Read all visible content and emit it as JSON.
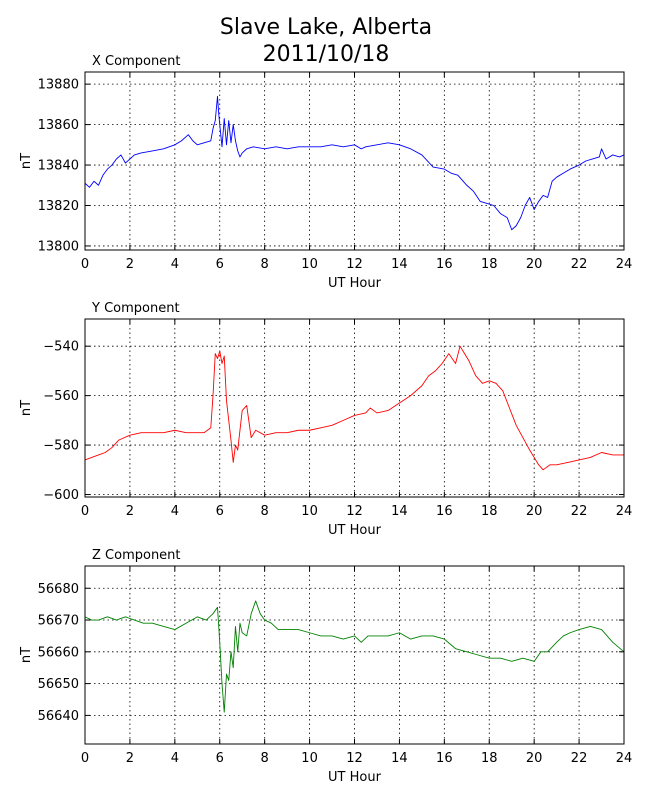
{
  "figure": {
    "title_line1": "Slave Lake, Alberta",
    "title_line2": "2011/10/18"
  },
  "chart_data": [
    {
      "type": "line",
      "title": "X Component",
      "xlabel": "UT Hour",
      "ylabel": "nT",
      "xlim": [
        0,
        24
      ],
      "ylim": [
        13798,
        13886
      ],
      "xticks": [
        0,
        2,
        4,
        6,
        8,
        10,
        12,
        14,
        16,
        18,
        20,
        22,
        24
      ],
      "yticks": [
        13800,
        13820,
        13840,
        13860,
        13880
      ],
      "grid": true,
      "color": "#0000ff",
      "series": [
        {
          "x": [
            0,
            0.2,
            0.4,
            0.6,
            0.8,
            1.0,
            1.2,
            1.4,
            1.6,
            1.8,
            2.0,
            2.2,
            2.5,
            3.0,
            3.5,
            4.0,
            4.3,
            4.6,
            4.8,
            5.0,
            5.3,
            5.6,
            5.7,
            5.8,
            5.9,
            5.95,
            6.0,
            6.1,
            6.2,
            6.3,
            6.4,
            6.5,
            6.6,
            6.7,
            6.8,
            6.9,
            7.0,
            7.2,
            7.5,
            8.0,
            8.5,
            9.0,
            9.5,
            10.0,
            10.5,
            11.0,
            11.5,
            12.0,
            12.3,
            12.5,
            13.0,
            13.5,
            14.0,
            14.5,
            15.0,
            15.5,
            16.0,
            16.3,
            16.6,
            17.0,
            17.3,
            17.6,
            17.9,
            18.2,
            18.5,
            18.8,
            19.0,
            19.2,
            19.4,
            19.6,
            19.8,
            20.0,
            20.2,
            20.4,
            20.6,
            20.8,
            21.0,
            21.3,
            21.6,
            22.0,
            22.3,
            22.6,
            22.9,
            23.0,
            23.2,
            23.5,
            23.8,
            24.0
          ],
          "y": [
            13831,
            13829,
            13832,
            13830,
            13835,
            13838,
            13840,
            13843,
            13845,
            13841,
            13843,
            13845,
            13846,
            13847,
            13848,
            13850,
            13852,
            13855,
            13852,
            13850,
            13851,
            13852,
            13858,
            13862,
            13874,
            13866,
            13860,
            13849,
            13863,
            13850,
            13862,
            13851,
            13860,
            13852,
            13847,
            13844,
            13846,
            13848,
            13849,
            13848,
            13849,
            13848,
            13849,
            13849,
            13849,
            13850,
            13849,
            13850,
            13848,
            13849,
            13850,
            13851,
            13850,
            13848,
            13845,
            13839,
            13838,
            13836,
            13835,
            13830,
            13827,
            13822,
            13821,
            13820,
            13816,
            13814,
            13808,
            13810,
            13814,
            13820,
            13824,
            13818,
            13822,
            13825,
            13824,
            13832,
            13834,
            13836,
            13838,
            13840,
            13842,
            13843,
            13844,
            13848,
            13843,
            13845,
            13844,
            13845
          ]
        }
      ]
    },
    {
      "type": "line",
      "title": "Y Component",
      "xlabel": "UT Hour",
      "ylabel": "nT",
      "xlim": [
        0,
        24
      ],
      "ylim": [
        -601,
        -529
      ],
      "xticks": [
        0,
        2,
        4,
        6,
        8,
        10,
        12,
        14,
        16,
        18,
        20,
        22,
        24
      ],
      "yticks": [
        -600,
        -580,
        -560,
        -540
      ],
      "grid": true,
      "color": "#ff0000",
      "series": [
        {
          "x": [
            0,
            0.3,
            0.6,
            0.9,
            1.2,
            1.5,
            2.0,
            2.5,
            3.0,
            3.5,
            4.0,
            4.5,
            5.0,
            5.3,
            5.6,
            5.7,
            5.8,
            5.9,
            6.0,
            6.1,
            6.2,
            6.3,
            6.5,
            6.6,
            6.7,
            6.8,
            7.0,
            7.2,
            7.4,
            7.6,
            8.0,
            8.5,
            9.0,
            9.5,
            10.0,
            10.5,
            11.0,
            11.5,
            12.0,
            12.5,
            12.7,
            13.0,
            13.5,
            14.0,
            14.5,
            15.0,
            15.3,
            15.6,
            15.9,
            16.2,
            16.5,
            16.7,
            16.9,
            17.1,
            17.4,
            17.7,
            18.0,
            18.3,
            18.6,
            18.9,
            19.2,
            19.5,
            19.8,
            20.0,
            20.2,
            20.4,
            20.7,
            21.0,
            21.5,
            22.0,
            22.5,
            23.0,
            23.5,
            24.0
          ],
          "y": [
            -586,
            -585,
            -584,
            -583,
            -581,
            -578,
            -576,
            -575,
            -575,
            -575,
            -574,
            -575,
            -575,
            -575,
            -573,
            -560,
            -543,
            -545,
            -542,
            -547,
            -544,
            -562,
            -578,
            -587,
            -580,
            -582,
            -566,
            -564,
            -577,
            -574,
            -576,
            -575,
            -575,
            -574,
            -574,
            -573,
            -572,
            -570,
            -568,
            -567,
            -565,
            -567,
            -566,
            -563,
            -560,
            -556,
            -552,
            -550,
            -547,
            -543,
            -547,
            -540,
            -543,
            -546,
            -552,
            -555,
            -554,
            -555,
            -558,
            -565,
            -572,
            -577,
            -582,
            -585,
            -588,
            -590,
            -588,
            -588,
            -587,
            -586,
            -585,
            -583,
            -584,
            -584
          ]
        }
      ]
    },
    {
      "type": "line",
      "title": "Z Component",
      "xlabel": "UT Hour",
      "ylabel": "nT",
      "xlim": [
        0,
        24
      ],
      "ylim": [
        56631,
        56687
      ],
      "xticks": [
        0,
        2,
        4,
        6,
        8,
        10,
        12,
        14,
        16,
        18,
        20,
        22,
        24
      ],
      "yticks": [
        56640,
        56650,
        56660,
        56670,
        56680
      ],
      "grid": true,
      "color": "#008000",
      "series": [
        {
          "x": [
            0,
            0.3,
            0.6,
            1.0,
            1.4,
            1.8,
            2.2,
            2.6,
            3.0,
            3.5,
            4.0,
            4.5,
            5.0,
            5.4,
            5.7,
            5.9,
            6.0,
            6.1,
            6.2,
            6.3,
            6.4,
            6.5,
            6.6,
            6.7,
            6.8,
            6.9,
            7.0,
            7.2,
            7.4,
            7.6,
            7.8,
            8.0,
            8.3,
            8.6,
            9.0,
            9.5,
            10.0,
            10.5,
            11.0,
            11.5,
            12.0,
            12.3,
            12.6,
            13.0,
            13.5,
            14.0,
            14.5,
            15.0,
            15.5,
            16.0,
            16.5,
            17.0,
            17.5,
            18.0,
            18.5,
            19.0,
            19.5,
            20.0,
            20.3,
            20.6,
            21.0,
            21.3,
            21.6,
            22.0,
            22.5,
            23.0,
            23.5,
            24.0
          ],
          "y": [
            56671,
            56670,
            56670,
            56671,
            56670,
            56671,
            56670,
            56669,
            56669,
            56668,
            56667,
            56669,
            56671,
            56670,
            56672,
            56674,
            56663,
            56650,
            56641,
            56653,
            56651,
            56660,
            56655,
            56668,
            56660,
            56669,
            56666,
            56665,
            56672,
            56676,
            56672,
            56670,
            56669,
            56667,
            56667,
            56667,
            56666,
            56665,
            56665,
            56664,
            56665,
            56663,
            56665,
            56665,
            56665,
            56666,
            56664,
            56665,
            56665,
            56664,
            56661,
            56660,
            56659,
            56658,
            56658,
            56657,
            56658,
            56657,
            56660,
            56660,
            56663,
            56665,
            56666,
            56667,
            56668,
            56667,
            56663,
            56660
          ]
        }
      ]
    }
  ]
}
